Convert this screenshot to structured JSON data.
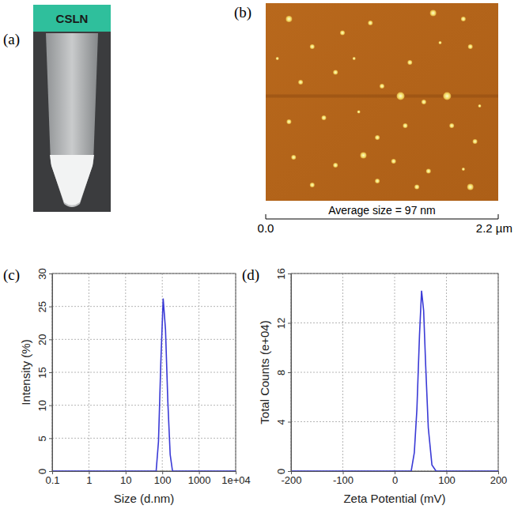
{
  "figure": {
    "panel_labels": [
      "(a)",
      "(b)",
      "(c)",
      "(d)"
    ],
    "photo_label": "CSLN",
    "afm_caption": "Average size = 97 nm",
    "scale_bar": [
      "0.0",
      "2.2 µm"
    ]
  },
  "chart_data": [
    {
      "type": "line",
      "x_label": "Size (d.nm)",
      "y_label": "Intensity (%)",
      "log": "x",
      "grid": true,
      "xlim": [
        0.1,
        10000
      ],
      "xticks": [
        0.1,
        1,
        10,
        100,
        1000,
        {
          "value": 10000,
          "label": "1e+04"
        }
      ],
      "ylim": [
        0,
        30
      ],
      "yticks": [
        0,
        5,
        10,
        15,
        20,
        25,
        30
      ],
      "color": "#3a3ad6",
      "x": [
        0.1,
        68.06,
        78.82,
        91.28,
        105.7,
        122.4,
        141.8,
        164.2,
        190.1,
        10000
      ],
      "values": [
        0,
        0,
        4.5,
        16.5,
        26.2,
        21.5,
        10.5,
        2.5,
        0,
        0
      ]
    },
    {
      "type": "line",
      "x_label": "Zeta Potential (mV)",
      "y_label": "Total Counts (e+04)",
      "grid": true,
      "xlim": [
        -200,
        200
      ],
      "xticks": [
        -200,
        -100,
        0,
        100,
        200
      ],
      "ylim": [
        0,
        16
      ],
      "yticks": [
        0,
        4,
        8,
        12,
        16
      ],
      "color": "#3a3ad6",
      "x": [
        -200,
        32,
        38,
        43,
        48,
        52,
        56,
        60,
        65,
        72,
        80,
        200
      ],
      "values": [
        0,
        0,
        1.5,
        5,
        11,
        14.6,
        13,
        8.5,
        3.5,
        0.5,
        0,
        0
      ]
    }
  ]
}
